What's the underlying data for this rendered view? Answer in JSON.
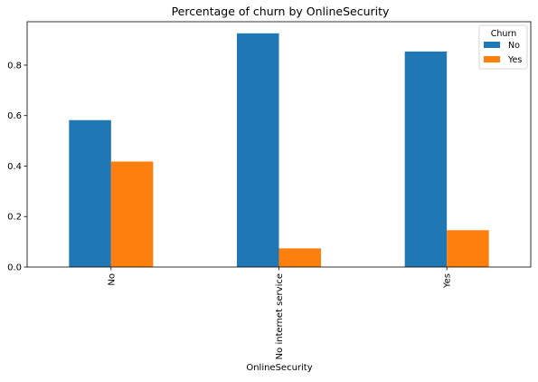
{
  "chart_data": {
    "type": "bar",
    "title": "Percentage of churn by OnlineSecurity",
    "xlabel": "OnlineSecurity",
    "ylabel": "",
    "categories": [
      "No",
      "No internet service",
      "Yes"
    ],
    "series": [
      {
        "name": "No",
        "values": [
          0.582,
          0.926,
          0.854
        ]
      },
      {
        "name": "Yes",
        "values": [
          0.418,
          0.074,
          0.146
        ]
      }
    ],
    "ylim": [
      0,
      0.972
    ],
    "yticks": [
      "0.0",
      "0.2",
      "0.4",
      "0.6",
      "0.8"
    ],
    "legend": {
      "title": "Churn",
      "placement": "top-right"
    },
    "grid": false,
    "colors": {
      "No": "#1f77b4",
      "Yes": "#ff7f0e"
    }
  }
}
